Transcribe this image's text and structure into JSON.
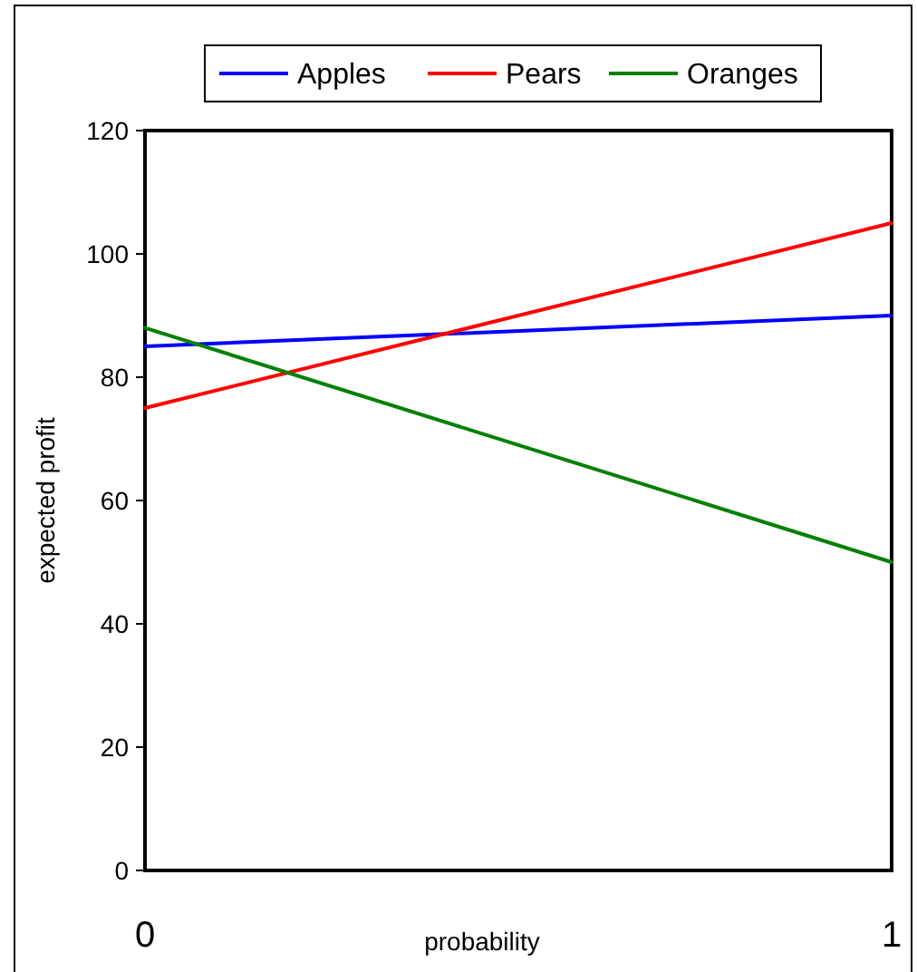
{
  "chart_data": {
    "type": "line",
    "xlabel": "probability",
    "ylabel": "expected profit",
    "x": [
      0,
      1
    ],
    "xlim": [
      0,
      1
    ],
    "xticks": [
      0,
      1
    ],
    "ylim": [
      0,
      120
    ],
    "yticks": [
      0,
      20,
      40,
      60,
      80,
      100,
      120
    ],
    "legend": "top",
    "grid": false,
    "marker": "none",
    "line_style": "solid",
    "series": [
      {
        "name": "Apples",
        "color": "#0000ff",
        "values": [
          85,
          90
        ]
      },
      {
        "name": "Pears",
        "color": "#ff0000",
        "values": [
          75,
          105
        ]
      },
      {
        "name": "Oranges",
        "color": "#008000",
        "values": [
          88,
          50
        ]
      }
    ]
  }
}
